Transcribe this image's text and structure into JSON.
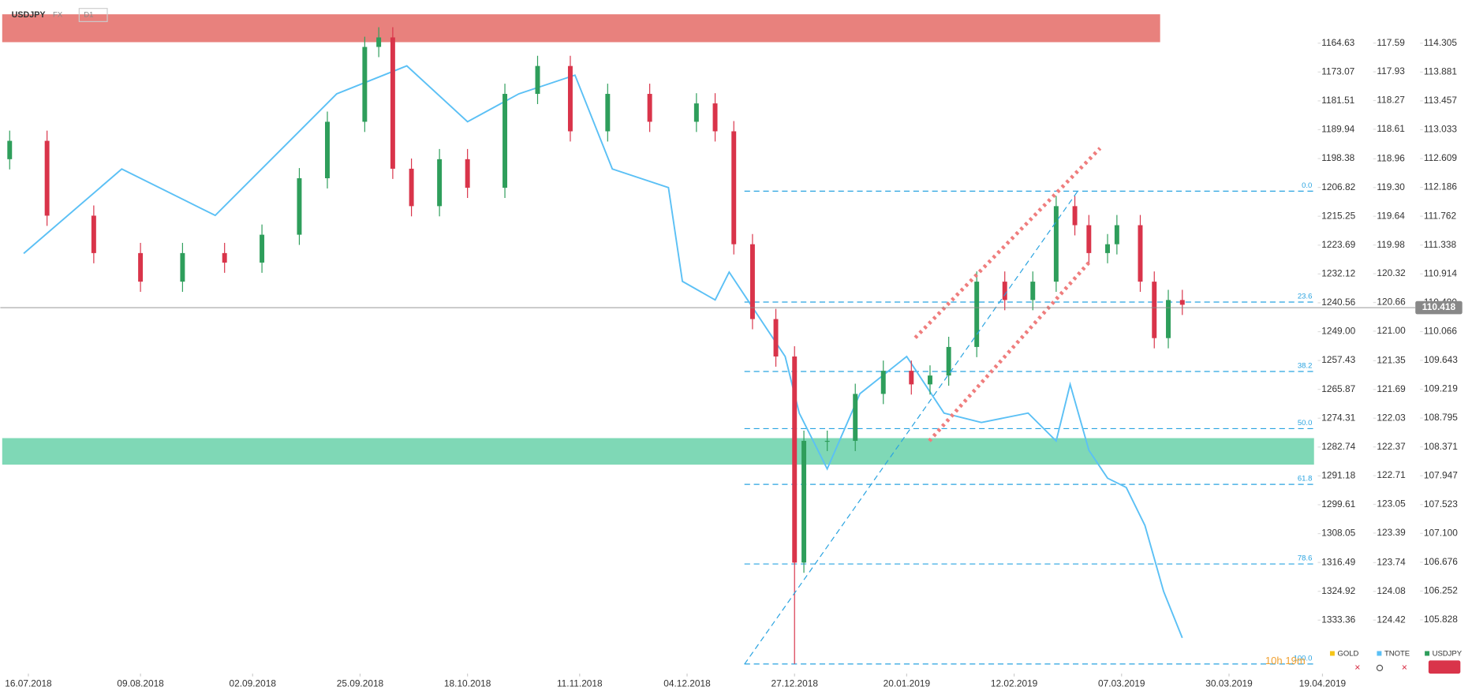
{
  "header": {
    "symbol": "USDJPY",
    "market": "FX",
    "timeframe": "D1"
  },
  "countdown": "10h 19m",
  "chart_data": {
    "type": "candlestick",
    "xlim": [
      "10.07.2018",
      "19.04.2019"
    ],
    "xticks": [
      "16.07.2018",
      "09.08.2018",
      "02.09.2018",
      "25.09.2018",
      "18.10.2018",
      "11.11.2018",
      "04.12.2018",
      "27.12.2018",
      "20.01.2019",
      "12.02.2019",
      "07.03.2019",
      "30.03.2019",
      "19.04.2019"
    ],
    "ylim": [
      105.08,
      114.94
    ],
    "yticks": [
      114.305,
      113.881,
      113.457,
      113.033,
      112.609,
      112.186,
      111.762,
      111.338,
      110.914,
      {
        "value": 110.49,
        "label": "110.490"
      },
      110.066,
      109.643,
      109.219,
      108.795,
      108.371,
      107.947,
      107.523,
      {
        "value": 107.1,
        "label": "107.100"
      },
      106.676,
      106.252,
      105.828
    ],
    "y2lim": [
      117.08,
      125.02
    ],
    "y2_inverted": true,
    "y2ticks": [
      117.59,
      117.93,
      118.27,
      118.61,
      118.96,
      {
        "value": 119.3,
        "label": "119.30"
      },
      119.64,
      119.98,
      120.32,
      120.66,
      {
        "value": 121,
        "label": "121.00"
      },
      121.35,
      121.69,
      122.03,
      122.37,
      122.71,
      123.05,
      123.39,
      123.74,
      124.08,
      124.42
    ],
    "y3lim": [
      1152.01,
      1348.17
    ],
    "y3_inverted": true,
    "y3ticks": [
      1164.63,
      1173.07,
      1181.51,
      1189.94,
      1198.38,
      1206.82,
      1215.25,
      1223.69,
      1232.12,
      1240.56,
      {
        "value": 1249,
        "label": "1249.00"
      },
      1257.43,
      1265.87,
      1274.31,
      1282.74,
      1291.18,
      1299.61,
      1308.05,
      1316.49,
      1324.92,
      1333.36
    ],
    "current_price": 110.418,
    "zones": [
      {
        "from": 114.32,
        "to": 114.73,
        "color": "#e8817d"
      },
      {
        "from": 108.11,
        "to": 108.5,
        "color": "#7fd8b6"
      }
    ],
    "fib_levels": [
      {
        "label": "0.0",
        "value": 112.13
      },
      {
        "label": "23.6",
        "value": 110.5
      },
      {
        "label": "38.2",
        "value": 109.48
      },
      {
        "label": "50.0",
        "value": 108.64
      },
      {
        "label": "61.8",
        "value": 107.82
      },
      {
        "label": "78.6",
        "value": 106.65
      },
      {
        "label": "100.0",
        "value": 105.18
      }
    ],
    "hidden_series": [
      {
        "name": "GOLD",
        "color": "#f5c518"
      }
    ],
    "series": [
      {
        "name": "USDJPY",
        "up_color": "#2e9e5b",
        "down_color": "#d9344a",
        "x": [
          "12.07.2018",
          "20.07.2018",
          "30.07.2018",
          "09.08.2018",
          "18.08.2018",
          "27.08.2018",
          "04.09.2018",
          "12.09.2018",
          "18.09.2018",
          "26.09.2018",
          "29.09.2018",
          "02.10.2018",
          "06.10.2018",
          "12.10.2018",
          "18.10.2018",
          "26.10.2018",
          "02.11.2018",
          "09.11.2018",
          "17.11.2018",
          "26.11.2018",
          "06.12.2018",
          "10.12.2018",
          "14.12.2018",
          "18.12.2018",
          "23.12.2018",
          "27.12.2018",
          "29.12.2018",
          "03.01.2019",
          "09.01.2019",
          "15.01.2019",
          "21.01.2019",
          "25.01.2019",
          "29.01.2019",
          "04.02.2019",
          "10.02.2019",
          "16.02.2019",
          "21.02.2019",
          "25.02.2019",
          "28.02.2019",
          "04.03.2019",
          "06.03.2019",
          "11.03.2019",
          "14.03.2019",
          "17.03.2019",
          "20.03.2019"
        ],
        "open": [
          112.6,
          112.87,
          111.77,
          111.22,
          110.8,
          111.22,
          111.08,
          111.49,
          112.32,
          113.15,
          114.25,
          114.39,
          112.46,
          111.91,
          112.6,
          112.18,
          113.56,
          113.97,
          113.01,
          113.56,
          113.15,
          113.42,
          113.01,
          111.35,
          110.25,
          109.7,
          106.67,
          108.46,
          108.46,
          109.15,
          109.49,
          109.29,
          109.42,
          109.84,
          110.8,
          110.53,
          110.8,
          111.91,
          111.63,
          111.22,
          111.35,
          111.63,
          110.8,
          109.97,
          110.53
        ],
        "high": [
          113.02,
          113.02,
          111.92,
          111.37,
          111.37,
          111.37,
          111.64,
          112.47,
          113.3,
          114.4,
          114.54,
          114.54,
          112.61,
          112.75,
          112.75,
          113.71,
          114.12,
          114.12,
          113.71,
          113.71,
          113.57,
          113.57,
          113.16,
          111.5,
          110.4,
          109.85,
          108.61,
          108.61,
          109.3,
          109.64,
          109.64,
          109.57,
          109.99,
          110.95,
          110.95,
          110.95,
          112.06,
          112.06,
          111.78,
          111.5,
          111.78,
          111.78,
          110.95,
          110.68,
          110.68
        ],
        "low": [
          112.45,
          111.62,
          111.07,
          110.65,
          110.65,
          110.93,
          110.93,
          111.34,
          112.17,
          113.0,
          114.1,
          112.31,
          111.76,
          111.76,
          112.03,
          112.03,
          113.41,
          112.86,
          112.86,
          113.0,
          113.0,
          112.86,
          111.2,
          110.1,
          109.55,
          105.18,
          106.52,
          108.31,
          108.31,
          109.0,
          109.14,
          109.14,
          109.27,
          109.69,
          110.38,
          110.38,
          110.65,
          111.48,
          111.07,
          111.07,
          111.2,
          110.65,
          109.82,
          109.82,
          110.31
        ],
        "close": [
          112.87,
          111.77,
          111.22,
          110.8,
          111.22,
          111.08,
          111.49,
          112.32,
          113.15,
          114.25,
          114.39,
          112.46,
          111.91,
          112.6,
          112.18,
          113.56,
          113.97,
          113.01,
          113.56,
          113.15,
          113.42,
          113.01,
          111.35,
          110.25,
          109.7,
          106.67,
          108.46,
          108.46,
          109.15,
          109.49,
          109.29,
          109.42,
          109.84,
          110.8,
          110.53,
          110.8,
          111.91,
          111.63,
          111.22,
          111.35,
          111.63,
          110.8,
          109.97,
          110.53,
          110.46
        ]
      },
      {
        "name": "TNOTE",
        "color": "#5bc0f5",
        "axis": "y2",
        "x": [
          "15.07.2018",
          "05.08.2018",
          "25.08.2018",
          "20.09.2018",
          "05.10.2018",
          "18.10.2018",
          "29.10.2018",
          "10.11.2018",
          "18.11.2018",
          "30.11.2018",
          "03.12.2018",
          "10.12.2018",
          "13.12.2018",
          "25.12.2018",
          "28.12.2018",
          "03.01.2019",
          "10.01.2019",
          "20.01.2019",
          "28.01.2019",
          "05.02.2019",
          "15.02.2019",
          "21.02.2019",
          "24.02.2019",
          "28.02.2019",
          "04.03.2019",
          "08.03.2019",
          "12.03.2019",
          "16.03.2019",
          "20.03.2019"
        ],
        "values": [
          120.08,
          119.08,
          119.63,
          118.19,
          117.86,
          118.52,
          118.19,
          117.97,
          119.08,
          119.3,
          120.41,
          120.63,
          120.3,
          121.3,
          121.97,
          122.63,
          121.74,
          121.3,
          121.97,
          122.08,
          121.97,
          122.3,
          121.63,
          122.41,
          122.74,
          122.85,
          123.3,
          124.08,
          124.63
        ]
      }
    ]
  }
}
